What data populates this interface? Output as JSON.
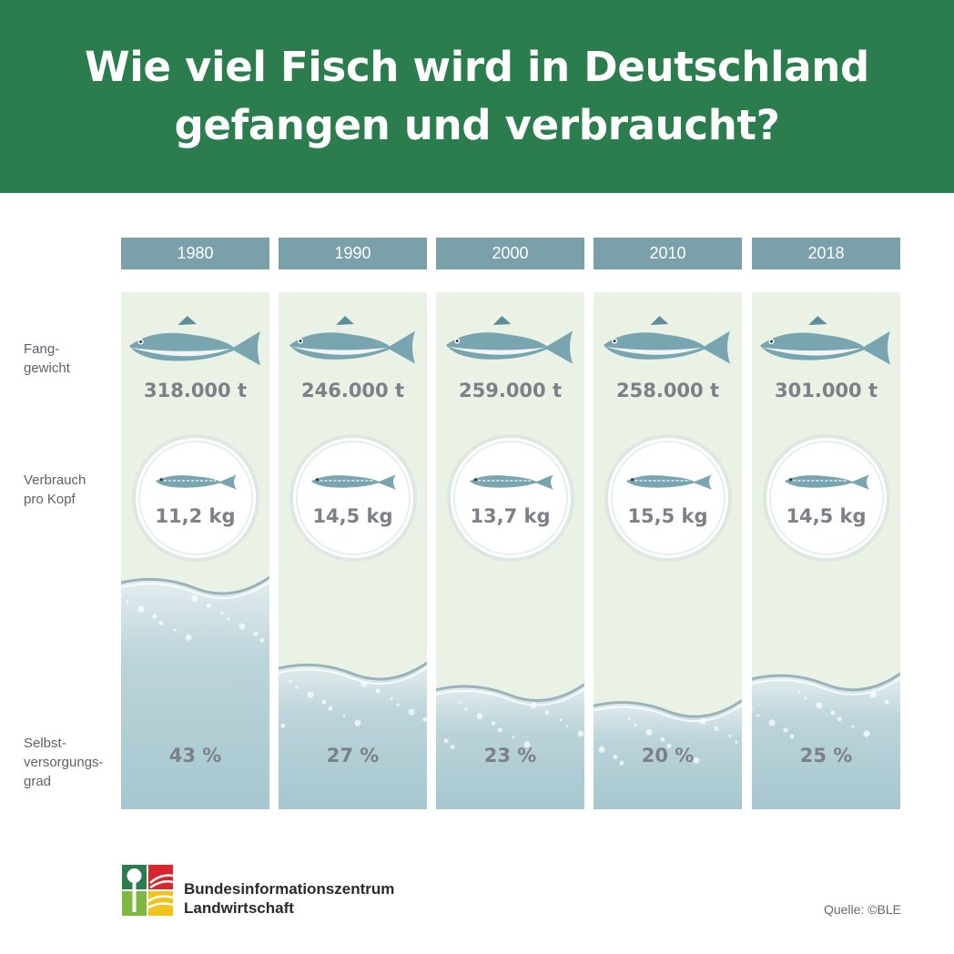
{
  "header": {
    "title_line1": "Wie viel Fisch wird in Deutschland",
    "title_line2": "gefangen und verbraucht?"
  },
  "row_labels": {
    "catch": "Fang-\ngewicht",
    "consumption": "Verbrauch\npro Kopf",
    "self_sufficiency": "Selbst-\nversorgungs-\ngrad"
  },
  "chart_data": {
    "type": "table",
    "columns": [
      "1980",
      "1990",
      "2000",
      "2010",
      "2018"
    ],
    "rows": [
      {
        "label": "Fang-gewicht",
        "values": [
          318000,
          246000,
          259000,
          258000,
          301000
        ],
        "unit": "t",
        "display": [
          "318.000 t",
          "246.000 t",
          "259.000 t",
          "258.000 t",
          "301.000 t"
        ]
      },
      {
        "label": "Verbrauch pro Kopf",
        "values": [
          11.2,
          14.5,
          13.7,
          15.5,
          14.5
        ],
        "unit": "kg",
        "display": [
          "11,2 kg",
          "14,5 kg",
          "13,7 kg",
          "15,5 kg",
          "14,5 kg"
        ]
      },
      {
        "label": "Selbst-versorgungs-grad",
        "values": [
          43,
          27,
          23,
          20,
          25
        ],
        "unit": "%",
        "display": [
          "43 %",
          "27 %",
          "23 %",
          "20 %",
          "25 %"
        ]
      }
    ]
  },
  "footer": {
    "org_line1": "Bundesinformationszentrum",
    "org_line2": "Landwirtschaft",
    "source": "Quelle: ©BLE"
  },
  "colors": {
    "header_bg": "#2b7d4e",
    "year_bg": "#7aa0a9",
    "column_bg": "#e9f2e5",
    "water": "#a6c7cf",
    "fish": "#78a5b0",
    "value_text": "#7c8088"
  }
}
